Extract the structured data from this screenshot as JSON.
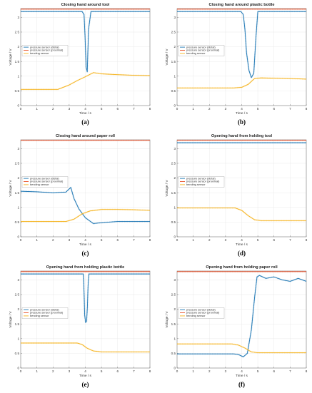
{
  "figure": {
    "xlabel": "Time / s",
    "ylabel": "Voltage / V",
    "legend": [
      "pressure sensor (distal)",
      "pressure sensor (proximal)",
      "bending sensor"
    ],
    "colors": {
      "distal": "#1f77b4",
      "proximal": "#e8542e",
      "bending": "#f5b21b",
      "grid": "#e6e6e6",
      "axis": "#666666"
    }
  },
  "chart_data": [
    {
      "type": "line",
      "title": "Closing hand around tool",
      "caption": "(a)",
      "xlabel": "Time / s",
      "ylabel": "Voltage / V",
      "xlim": [
        0,
        8
      ],
      "ylim": [
        0,
        3.3
      ],
      "xticks": [
        0,
        1,
        2,
        3,
        4,
        5,
        6,
        7,
        8
      ],
      "yticks": [
        0,
        0.5,
        1,
        1.5,
        2,
        2.5,
        3
      ],
      "grid": true,
      "legend_position": "middle-left",
      "series": [
        {
          "name": "pressure sensor (distal)",
          "x": [
            0,
            3.8,
            3.92,
            3.98,
            4.05,
            4.12,
            4.2,
            4.35,
            8
          ],
          "y": [
            3.2,
            3.2,
            3.1,
            2.4,
            1.3,
            1.15,
            2.6,
            3.2,
            3.2
          ]
        },
        {
          "name": "pressure sensor (proximal)",
          "x": [
            0,
            8
          ],
          "y": [
            3.28,
            3.28
          ]
        },
        {
          "name": "bending sensor",
          "x": [
            0,
            2.3,
            3.0,
            3.5,
            4.0,
            4.5,
            5.0,
            6.0,
            7.0,
            8.0
          ],
          "y": [
            0.55,
            0.55,
            0.7,
            0.85,
            0.98,
            1.12,
            1.08,
            1.05,
            1.03,
            1.02
          ]
        }
      ]
    },
    {
      "type": "line",
      "title": "Closing hand around plastic bottle",
      "caption": "(b)",
      "xlabel": "Time / s",
      "ylabel": "Voltage / V",
      "xlim": [
        0,
        8
      ],
      "ylim": [
        0,
        3.3
      ],
      "xticks": [
        0,
        1,
        2,
        3,
        4,
        5,
        6,
        7,
        8
      ],
      "yticks": [
        0,
        0.5,
        1,
        1.5,
        2,
        2.5,
        3
      ],
      "grid": true,
      "legend_position": "middle-left",
      "series": [
        {
          "name": "pressure sensor (distal)",
          "x": [
            0,
            3.95,
            4.1,
            4.2,
            4.3,
            4.45,
            4.6,
            4.75,
            4.88,
            5.0,
            8
          ],
          "y": [
            3.2,
            3.2,
            3.1,
            2.6,
            1.8,
            1.2,
            0.95,
            1.1,
            2.3,
            3.2,
            3.2
          ]
        },
        {
          "name": "pressure sensor (proximal)",
          "x": [
            0,
            8
          ],
          "y": [
            3.28,
            3.28
          ]
        },
        {
          "name": "bending sensor",
          "x": [
            0,
            3.5,
            4.0,
            4.4,
            4.8,
            5.2,
            6.0,
            7.0,
            8.0
          ],
          "y": [
            0.6,
            0.6,
            0.62,
            0.72,
            0.92,
            0.94,
            0.93,
            0.92,
            0.9
          ]
        }
      ]
    },
    {
      "type": "line",
      "title": "Closing hand around paper roll",
      "caption": "(c)",
      "xlabel": "Time / s",
      "ylabel": "Voltage / V",
      "xlim": [
        0,
        8
      ],
      "ylim": [
        0,
        3.3
      ],
      "xticks": [
        0,
        1,
        2,
        3,
        4,
        5,
        6,
        7,
        8
      ],
      "yticks": [
        0,
        0.5,
        1,
        1.5,
        2,
        2.5,
        3
      ],
      "grid": true,
      "legend_position": "middle-left",
      "series": [
        {
          "name": "pressure sensor (distal)",
          "x": [
            0,
            1.0,
            2.0,
            2.8,
            3.1,
            3.3,
            3.6,
            4.0,
            4.5,
            5.0,
            6.0,
            7.0,
            8.0
          ],
          "y": [
            1.55,
            1.53,
            1.5,
            1.52,
            1.68,
            1.3,
            0.95,
            0.65,
            0.45,
            0.48,
            0.52,
            0.52,
            0.52
          ]
        },
        {
          "name": "pressure sensor (proximal)",
          "x": [
            0,
            8
          ],
          "y": [
            3.28,
            3.28
          ]
        },
        {
          "name": "bending sensor",
          "x": [
            0,
            2.8,
            3.3,
            3.8,
            4.3,
            5.0,
            6.0,
            7.0,
            8.0
          ],
          "y": [
            0.52,
            0.52,
            0.6,
            0.78,
            0.88,
            0.93,
            0.93,
            0.92,
            0.9
          ]
        }
      ]
    },
    {
      "type": "line",
      "title": "Opening hand from holding tool",
      "caption": "(d)",
      "xlabel": "Time / s",
      "ylabel": "Voltage / V",
      "xlim": [
        0,
        8
      ],
      "ylim": [
        0,
        3.3
      ],
      "xticks": [
        0,
        1,
        2,
        3,
        4,
        5,
        6,
        7,
        8
      ],
      "yticks": [
        0,
        0.5,
        1,
        1.5,
        2,
        2.5,
        3
      ],
      "grid": true,
      "legend_position": "middle-left",
      "series": [
        {
          "name": "pressure sensor (distal)",
          "x": [
            0,
            8
          ],
          "y": [
            3.2,
            3.2
          ]
        },
        {
          "name": "pressure sensor (proximal)",
          "x": [
            0,
            8
          ],
          "y": [
            3.28,
            3.28
          ]
        },
        {
          "name": "bending sensor",
          "x": [
            0,
            3.6,
            4.0,
            4.4,
            4.8,
            5.2,
            8.0
          ],
          "y": [
            0.98,
            0.98,
            0.9,
            0.72,
            0.58,
            0.55,
            0.55
          ]
        }
      ]
    },
    {
      "type": "line",
      "title": "Opening hand from holding plastic bottle",
      "caption": "(e)",
      "xlabel": "Time / s",
      "ylabel": "Voltage / V",
      "xlim": [
        0,
        8
      ],
      "ylim": [
        0,
        3.3
      ],
      "xticks": [
        0,
        1,
        2,
        3,
        4,
        5,
        6,
        7,
        8
      ],
      "yticks": [
        0,
        0.5,
        1,
        1.5,
        2,
        2.5,
        3
      ],
      "grid": true,
      "legend_position": "middle-left",
      "series": [
        {
          "name": "pressure sensor (distal)",
          "x": [
            0,
            3.88,
            3.92,
            3.96,
            4.02,
            4.08,
            4.13,
            4.17,
            4.22,
            8
          ],
          "y": [
            3.2,
            3.2,
            2.6,
            1.8,
            1.55,
            1.6,
            2.1,
            2.8,
            3.2,
            3.2
          ]
        },
        {
          "name": "pressure sensor (proximal)",
          "x": [
            0,
            8
          ],
          "y": [
            3.28,
            3.28
          ]
        },
        {
          "name": "bending sensor",
          "x": [
            0,
            3.5,
            3.8,
            4.1,
            4.5,
            5.0,
            8.0
          ],
          "y": [
            0.85,
            0.85,
            0.8,
            0.68,
            0.58,
            0.55,
            0.55
          ]
        }
      ]
    },
    {
      "type": "line",
      "title": "Opening hand from holding paper roll",
      "caption": "(f)",
      "xlabel": "Time / s",
      "ylabel": "Voltage / V",
      "xlim": [
        0,
        8
      ],
      "ylim": [
        0,
        3.3
      ],
      "xticks": [
        0,
        1,
        2,
        3,
        4,
        5,
        6,
        7,
        8
      ],
      "yticks": [
        0,
        0.5,
        1,
        1.5,
        2,
        2.5,
        3
      ],
      "grid": true,
      "legend_position": "middle-left",
      "series": [
        {
          "name": "pressure sensor (distal)",
          "x": [
            0,
            3.5,
            3.8,
            4.1,
            4.35,
            4.6,
            4.8,
            4.95,
            5.1,
            5.5,
            6.0,
            6.5,
            7.0,
            7.5,
            8.0
          ],
          "y": [
            0.48,
            0.48,
            0.46,
            0.38,
            0.5,
            1.3,
            2.4,
            3.1,
            3.15,
            3.05,
            3.1,
            3.0,
            2.95,
            3.05,
            2.95
          ]
        },
        {
          "name": "pressure sensor (proximal)",
          "x": [
            0,
            8
          ],
          "y": [
            3.28,
            3.28
          ]
        },
        {
          "name": "bending sensor",
          "x": [
            0,
            3.4,
            3.8,
            4.2,
            4.6,
            5.0,
            8.0
          ],
          "y": [
            0.82,
            0.82,
            0.78,
            0.68,
            0.55,
            0.52,
            0.52
          ]
        }
      ]
    }
  ]
}
